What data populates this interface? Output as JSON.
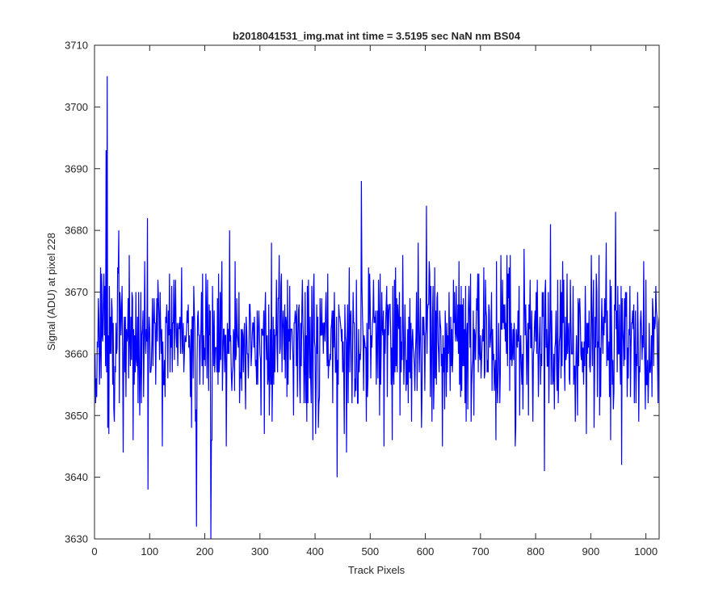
{
  "chart_data": {
    "type": "line",
    "title": "b2018041531_img.mat int time = 3.5195 sec  NaN nm BS04",
    "xlabel": "Track Pixels",
    "ylabel": "Signal (ADU) at pixel 228",
    "xlim": [
      0,
      1024
    ],
    "ylim": [
      3630,
      3710
    ],
    "xticks": [
      0,
      100,
      200,
      300,
      400,
      500,
      600,
      700,
      800,
      900,
      1000
    ],
    "yticks": [
      3630,
      3640,
      3650,
      3660,
      3670,
      3680,
      3690,
      3700,
      3710
    ],
    "grid": false,
    "series": [
      {
        "color": "#0000ff",
        "x_start": 1,
        "x_step": 1,
        "count": 1024,
        "mean": 3662,
        "std": 6.5,
        "min": 3630,
        "max": 3705,
        "notable_points": [
          {
            "x": 23,
            "y": 3705
          },
          {
            "x": 21,
            "y": 3693
          },
          {
            "x": 24,
            "y": 3648
          },
          {
            "x": 52,
            "y": 3644
          },
          {
            "x": 97,
            "y": 3638
          },
          {
            "x": 185,
            "y": 3632
          },
          {
            "x": 211,
            "y": 3630
          },
          {
            "x": 440,
            "y": 3640
          },
          {
            "x": 484,
            "y": 3688
          },
          {
            "x": 816,
            "y": 3641
          },
          {
            "x": 956,
            "y": 3642
          },
          {
            "x": 945,
            "y": 3683
          }
        ]
      }
    ]
  }
}
